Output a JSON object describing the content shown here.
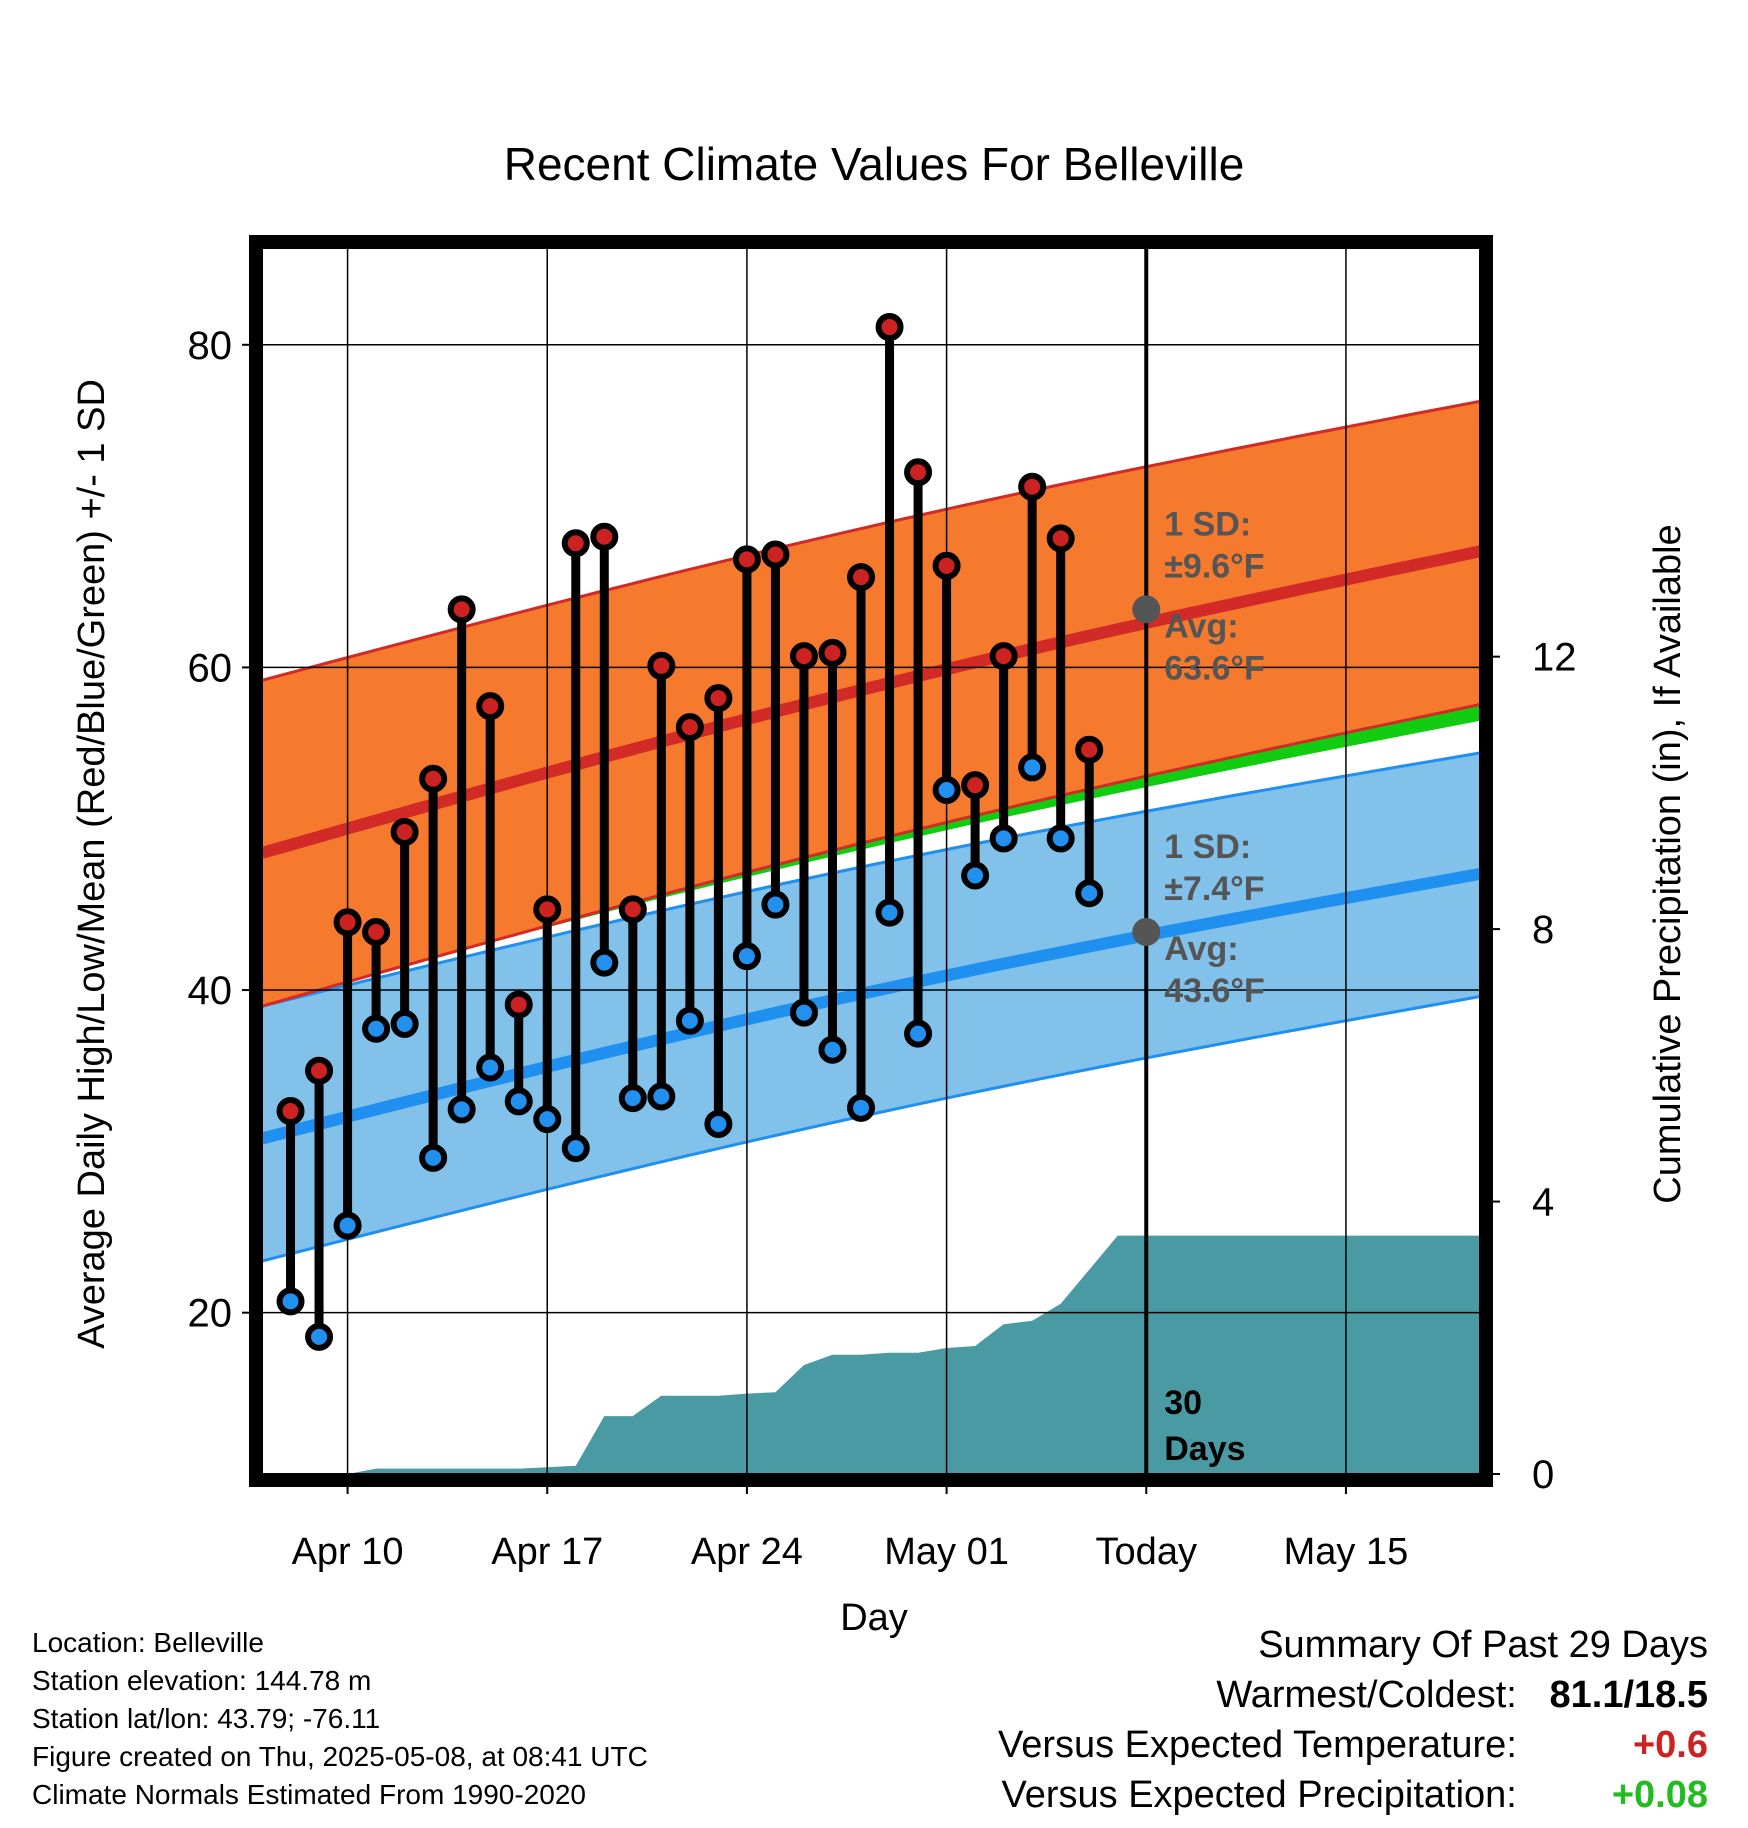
{
  "chart_data": {
    "type": "line",
    "title": "Recent Climate Values For Belleville",
    "xlabel": "Day",
    "ylabel_left": "Average Daily High/Low/Mean (Red/Blue/Green) +/- 1 SD",
    "ylabel_right": "Cumulative Precipitation (in), If Available",
    "x_tick_labels": [
      "Apr 10",
      "Apr 17",
      "Apr 24",
      "May 01",
      "Today",
      "May 15"
    ],
    "x_tick_days": [
      10,
      17,
      24,
      31,
      38,
      45
    ],
    "xlim_days": [
      7,
      49.7
    ],
    "ylim_left": [
      10,
      86
    ],
    "ylim_right": [
      0,
      18
    ],
    "y_left_ticks": [
      20,
      40,
      60,
      80
    ],
    "y_right_ticks": [
      0,
      4,
      8,
      12
    ],
    "day_index_note_omitted": true,
    "normals": {
      "high_mean_start": 48.5,
      "high_mean_end": 67.2,
      "high_sd_upper_start": 59.2,
      "high_sd_upper_end": 76.5,
      "high_sd_lower_start": 39.0,
      "high_sd_lower_end": 57.7,
      "low_mean_start": 30.8,
      "low_mean_end": 47.2,
      "low_sd_upper_start": 39.0,
      "low_sd_upper_end": 54.7,
      "low_sd_lower_start": 23.2,
      "low_sd_lower_end": 39.6,
      "mean_green_start": 39.7,
      "mean_green_end": 57.2
    },
    "series": [
      {
        "name": "High",
        "values": [
          32.5,
          35.0,
          44.2,
          43.6,
          49.8,
          53.1,
          63.6,
          57.6,
          39.1,
          45.0,
          67.7,
          68.1,
          45.0,
          60.1,
          56.3,
          58.1,
          66.7,
          67.0,
          60.7,
          60.9,
          65.6,
          81.1,
          72.1,
          66.3,
          52.7,
          60.7,
          71.2,
          68.0,
          54.9
        ]
      },
      {
        "name": "Low",
        "values": [
          20.7,
          18.5,
          25.4,
          37.6,
          37.9,
          29.6,
          32.6,
          35.2,
          33.1,
          32.0,
          30.2,
          41.7,
          33.3,
          33.4,
          38.1,
          31.7,
          42.1,
          45.3,
          38.6,
          36.3,
          32.7,
          44.8,
          37.3,
          52.4,
          47.1,
          49.4,
          53.8,
          49.4,
          46.0
        ]
      },
      {
        "name": "Cumulative Precipitation",
        "values": [
          0.0,
          0.0,
          0.0,
          0.08,
          0.08,
          0.08,
          0.08,
          0.08,
          0.08,
          0.1,
          0.12,
          0.85,
          0.85,
          1.15,
          1.15,
          1.15,
          1.18,
          1.2,
          1.6,
          1.75,
          1.75,
          1.78,
          1.78,
          1.85,
          1.88,
          2.2,
          2.25,
          2.5,
          3.0,
          3.5,
          3.5
        ]
      }
    ],
    "series_start_day": 8,
    "precip_start_day": 8,
    "today_label": "30 Days",
    "sd_high_label": "1 SD:",
    "sd_high_value": "±9.6°F",
    "avg_high_label": "Avg:",
    "avg_high_value": "63.6°F",
    "avg_high": 63.6,
    "sd_low_label": "1 SD:",
    "sd_low_value": "±7.4°F",
    "avg_low_label": "Avg:",
    "avg_low_value": "43.6°F",
    "avg_low": 43.6,
    "colors": {
      "high_band": "#f57a2e",
      "high_line": "#d22a26",
      "low_band": "#82c2ea",
      "low_line": "#1f8ff0",
      "mean_band": "#11cc11",
      "precip_fill": "#4a9aa3",
      "marker_high": "#cc2222",
      "marker_low": "#2290ee",
      "label_gray": "#555555"
    }
  },
  "footer": {
    "location": "Location: Belleville",
    "elevation": "Station elevation: 144.78 m",
    "latlon": "Station lat/lon: 43.79; -76.11",
    "created": "Figure created on Thu, 2025-05-08, at 08:41 UTC",
    "normals": "Climate Normals Estimated From 1990-2020"
  },
  "summary": {
    "title": "Summary Of Past 29 Days",
    "warmest_label": "Warmest/Coldest:",
    "warmest_value": "81.1/18.5",
    "temp_label": "Versus Expected Temperature:",
    "temp_value": "+0.6",
    "temp_color": "#cc2222",
    "precip_label": "Versus Expected Precipitation:",
    "precip_value": "+0.08",
    "precip_color": "#22bb22"
  }
}
